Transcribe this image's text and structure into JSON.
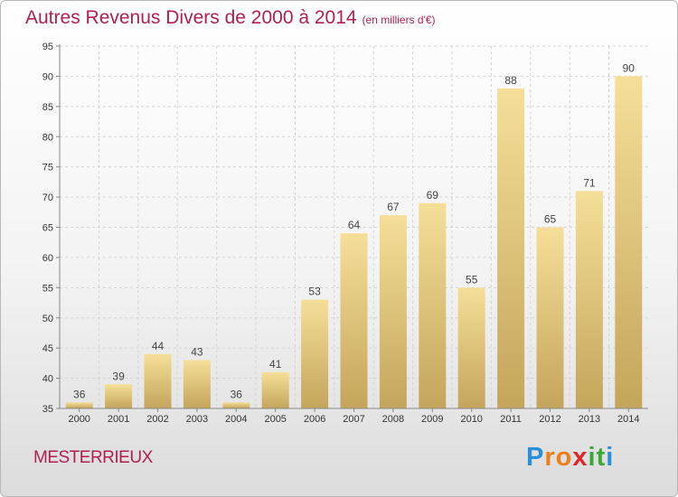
{
  "header": {
    "title": "Autres Revenus Divers de 2000 à 2014",
    "unit": "(en milliers d'€)"
  },
  "commune": "MESTERRIEUX",
  "logo": {
    "letters": [
      "P",
      "r",
      "o",
      "x",
      "i",
      "t",
      "i"
    ],
    "colors": [
      "#2a8fd6",
      "#ef7d1a",
      "#ef7d1a",
      "#e0262a",
      "#3aa935",
      "#3aa935",
      "#2a8fd6"
    ]
  },
  "chart_data": {
    "type": "bar",
    "title": "Autres Revenus Divers de 2000 à 2014",
    "subtitle": "(en milliers d'€)",
    "xlabel": "",
    "ylabel": "",
    "categories": [
      "2000",
      "2001",
      "2002",
      "2003",
      "2004",
      "2005",
      "2006",
      "2007",
      "2008",
      "2009",
      "2010",
      "2011",
      "2012",
      "2013",
      "2014"
    ],
    "values": [
      36,
      39,
      44,
      43,
      36,
      41,
      53,
      64,
      67,
      69,
      55,
      88,
      65,
      71,
      90
    ],
    "ylim": [
      35,
      95
    ],
    "yticks": [
      35,
      40,
      45,
      50,
      55,
      60,
      65,
      70,
      75,
      80,
      85,
      90,
      95
    ],
    "grid": true,
    "legend": "none",
    "colors": {
      "bar_light": "#f5df98",
      "bar_dark": "#c4a55c",
      "grid": "#d4d4d4",
      "axis": "#888888"
    }
  }
}
